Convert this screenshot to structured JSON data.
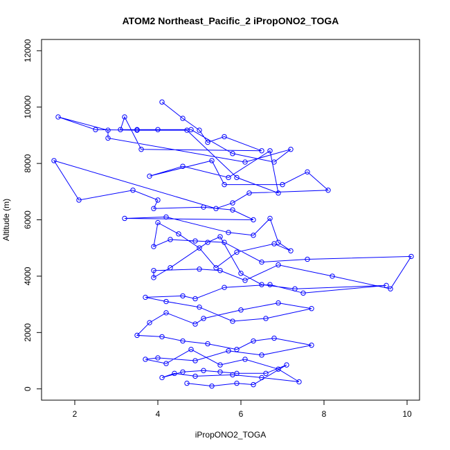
{
  "chart_data": {
    "type": "line",
    "title": "ATOM2 Northeast_Pacific_2 iPropONO2_TOGA",
    "xlabel": "iPropONO2_TOGA",
    "ylabel": "Altitude (m)",
    "xlim": [
      1.2,
      10.3
    ],
    "ylim": [
      -400,
      12400
    ],
    "xticks": [
      2,
      4,
      6,
      8,
      10
    ],
    "yticks": [
      0,
      2000,
      4000,
      6000,
      8000,
      10000,
      12000
    ],
    "grid": false,
    "color": "#0000ff",
    "marker": "open-circle",
    "series": [
      {
        "x": [
          4.1,
          4.6,
          5.0,
          5.2,
          5.6,
          6.5,
          3.6,
          3.2,
          3.1,
          3.5,
          4.0,
          4.8,
          5.8,
          6.8,
          7.2,
          6.1,
          2.8,
          2.8,
          1.6,
          2.5,
          3.5,
          4.7,
          5.9,
          6.9,
          6.7,
          5.7,
          4.6,
          3.8,
          5.3,
          5.6,
          7.0,
          7.6,
          8.1,
          6.2,
          5.8,
          5.4,
          1.5,
          2.1,
          3.4,
          4.0,
          3.9,
          5.1,
          5.8,
          6.3,
          3.2,
          4.2,
          5.7,
          6.3,
          6.7,
          6.9,
          7.2,
          6.8,
          5.9,
          5.4,
          5.0,
          4.5,
          4.0,
          3.9,
          4.3,
          4.9,
          5.6,
          6.5,
          7.6,
          10.1,
          9.6,
          8.2,
          6.9,
          6.1,
          5.5,
          5.0,
          3.9,
          3.9,
          4.3,
          5.2,
          5.5,
          6.0,
          6.5,
          7.3,
          9.5,
          7.5,
          6.7,
          5.6,
          4.9,
          4.6,
          3.7,
          4.2,
          5.0,
          5.8,
          6.6,
          7.7,
          6.9,
          6.0,
          5.1,
          4.9,
          4.2,
          3.8,
          3.5,
          4.1,
          4.6,
          5.2,
          5.9,
          6.3,
          6.8,
          7.7,
          6.5,
          5.7,
          4.9,
          4.0,
          3.7,
          4.2,
          4.8,
          5.5,
          6.1,
          6.9,
          7.4,
          6.5,
          5.8,
          4.9,
          4.4,
          4.1,
          4.6,
          5.1,
          5.5,
          5.9,
          6.6,
          7.1,
          6.3,
          5.9,
          5.3,
          4.7
        ],
        "y": [
          10180,
          9600,
          9180,
          8750,
          8950,
          8450,
          8500,
          9650,
          9200,
          9200,
          9200,
          9200,
          8350,
          8050,
          8500,
          8050,
          8900,
          9180,
          9650,
          9200,
          9180,
          9180,
          7500,
          6950,
          8450,
          7500,
          7900,
          7550,
          8100,
          7250,
          7250,
          7700,
          7050,
          6950,
          6600,
          6400,
          8100,
          6700,
          7050,
          6700,
          6400,
          6450,
          6350,
          6000,
          6050,
          6100,
          5550,
          5450,
          6050,
          5200,
          4900,
          5150,
          4850,
          4300,
          5000,
          5500,
          5900,
          5050,
          5300,
          5250,
          5200,
          4500,
          4600,
          4700,
          3550,
          4000,
          4400,
          3850,
          4200,
          4250,
          4200,
          3950,
          4300,
          5200,
          5400,
          4100,
          3700,
          3550,
          3670,
          3400,
          3700,
          3600,
          3200,
          3300,
          3250,
          3100,
          2900,
          2400,
          2500,
          2850,
          3050,
          2800,
          2500,
          2300,
          2700,
          2350,
          1900,
          1850,
          1700,
          1600,
          1400,
          1700,
          1800,
          1550,
          1200,
          1350,
          1000,
          1100,
          1050,
          900,
          1400,
          850,
          1050,
          700,
          250,
          400,
          500,
          450,
          550,
          400,
          600,
          650,
          600,
          550,
          550,
          850,
          150,
          200,
          100,
          200
        ]
      }
    ]
  }
}
